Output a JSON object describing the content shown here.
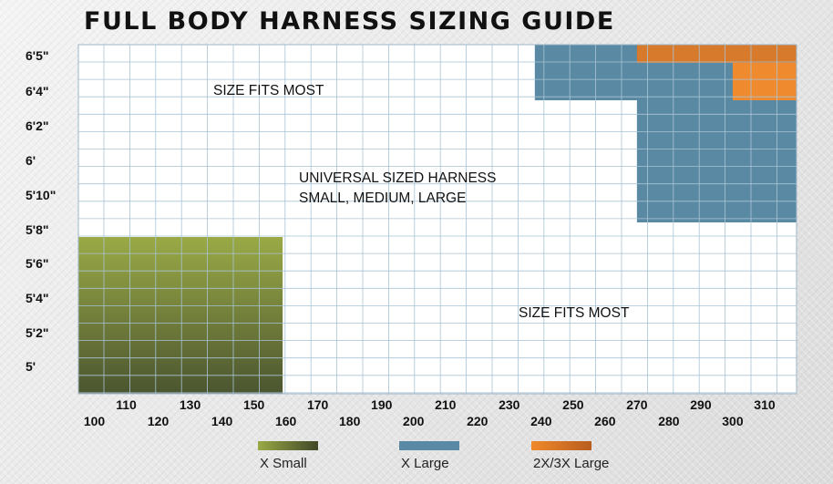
{
  "chart_data": {
    "type": "heatmap",
    "title": "FULL BODY HARNESS SIZING GUIDE",
    "xlim": [
      95,
      320
    ],
    "ylim": [
      "5'",
      "6'5\""
    ],
    "x_ticks_row1": [
      100,
      120,
      140,
      160,
      180,
      200,
      220,
      240,
      260,
      280,
      300
    ],
    "x_ticks_row2": [
      110,
      130,
      150,
      170,
      190,
      210,
      230,
      250,
      270,
      290,
      310
    ],
    "y_ticks": [
      "5'",
      "5'2\"",
      "5'4\"",
      "5'6\"",
      "5'8\"",
      "5'10\"",
      "6'",
      "6'2\"",
      "6'4\"",
      "6'5\""
    ],
    "regions": [
      {
        "legend": "X Small",
        "weight_range": [
          95,
          159
        ],
        "height_range": [
          "5'",
          "5'7\""
        ],
        "color_top": "#9aaa45",
        "color_bottom": "#4b5530"
      },
      {
        "legend": "X Large",
        "weight_range": [
          238,
          320
        ],
        "height_range": [
          "6'2\"",
          "6'5\""
        ],
        "color": "#5a8aa3"
      },
      {
        "legend": "X Large",
        "weight_range": [
          270,
          320
        ],
        "height_range": [
          "5'8\"",
          "6'2\""
        ],
        "color": "#5a8aa3"
      },
      {
        "legend": "2X/3X Large",
        "weight_range": [
          270,
          320
        ],
        "height_range": [
          "6'4\"",
          "6'5\""
        ],
        "color": "#d77a2c"
      },
      {
        "legend": "2X/3X Large",
        "weight_range": [
          300,
          320
        ],
        "height_range": [
          "6'2\"",
          "6'4\""
        ],
        "color": "#ef8a2e"
      }
    ],
    "annotations": [
      "SIZE FITS MOST",
      "UNIVERSAL SIZED HARNESS",
      "SMALL, MEDIUM, LARGE",
      "SIZE FITS MOST"
    ],
    "legend": [
      {
        "label": "X Small",
        "color_left": "#9aaa45",
        "color_right": "#3f4727"
      },
      {
        "label": "X Large",
        "color_left": "#5a8aa3",
        "color_right": "#5a8aa3"
      },
      {
        "label": "2X/3X Large",
        "color_left": "#f0892b",
        "color_right": "#b85d1f"
      }
    ],
    "grid": true,
    "legend_position": "bottom"
  }
}
